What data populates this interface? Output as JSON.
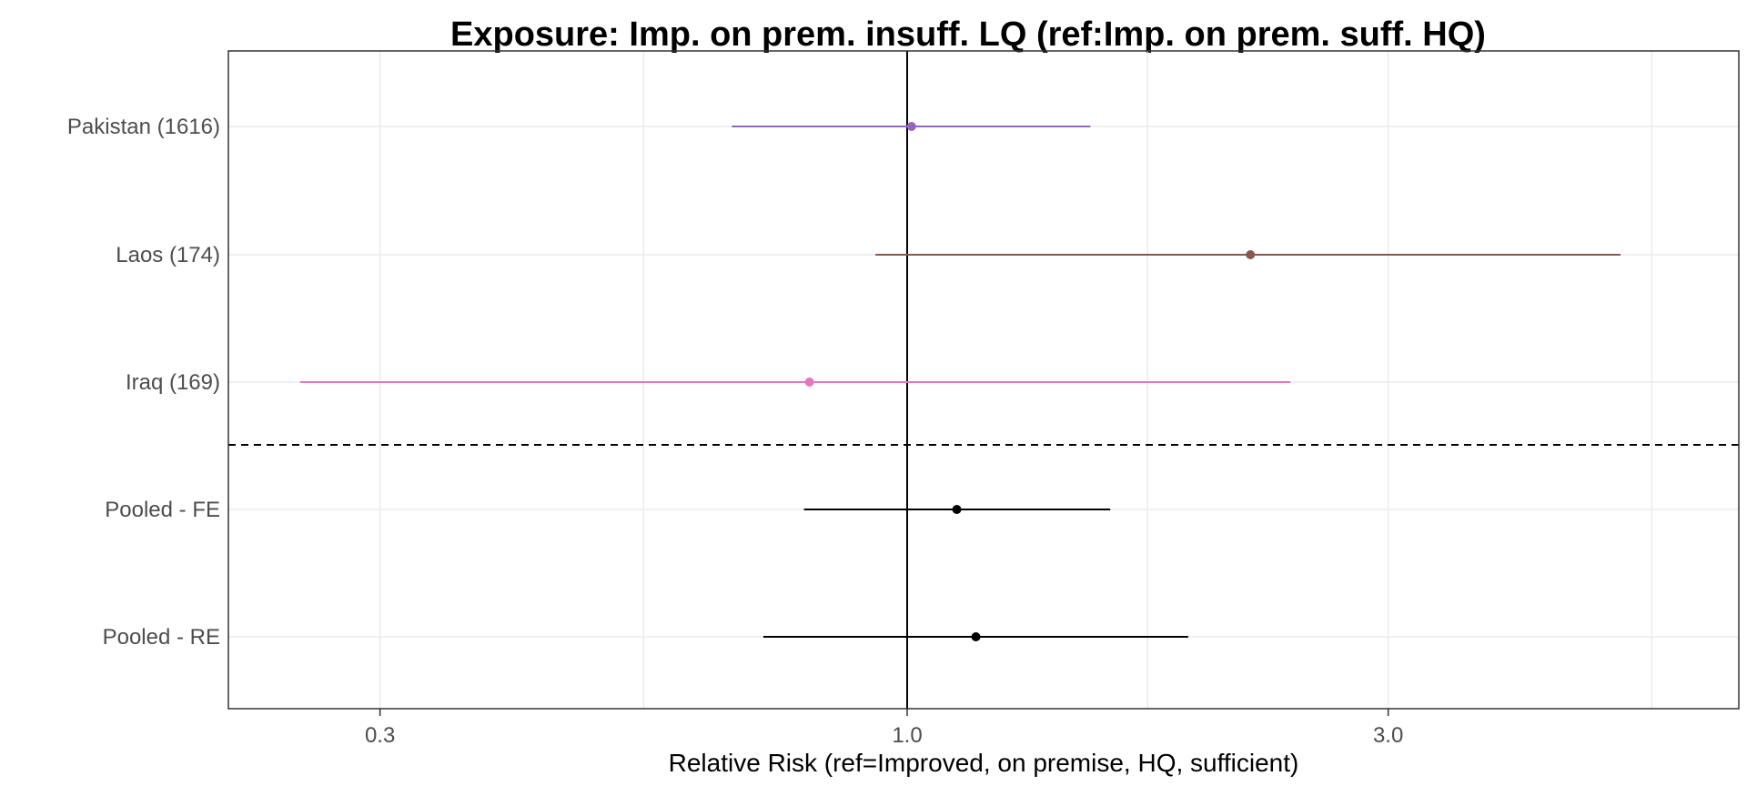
{
  "chart_data": {
    "type": "scatter",
    "subtype": "forest-plot",
    "title": "Exposure: Imp. on prem. insuff. LQ (ref:Imp. on prem. suff. HQ)",
    "xlabel": "Relative Risk (ref=Improved, on premise, HQ, sufficient)",
    "ylabel": "",
    "x_scale": "log",
    "xlim": [
      0.2,
      5.5
    ],
    "x_ticks": [
      {
        "value": 0.3,
        "label": "0.3"
      },
      {
        "value": 1.0,
        "label": "1.0"
      },
      {
        "value": 3.0,
        "label": "3.0"
      }
    ],
    "reference_line": 1.0,
    "separator": "dashed line between Iraq (169) and Pooled - FE",
    "grid": true,
    "rows": [
      {
        "label": "Pakistan (1616)",
        "estimate": 1.01,
        "lower": 0.67,
        "upper": 1.52,
        "color": "#9467bd"
      },
      {
        "label": "Laos (174)",
        "estimate": 2.19,
        "lower": 0.93,
        "upper": 5.1,
        "color": "#8c564b"
      },
      {
        "label": "Iraq (169)",
        "estimate": 0.8,
        "lower": 0.25,
        "upper": 2.4,
        "color": "#e377c2"
      },
      {
        "label": "Pooled - FE",
        "estimate": 1.12,
        "lower": 0.79,
        "upper": 1.59,
        "color": "#000000"
      },
      {
        "label": "Pooled - RE",
        "estimate": 1.17,
        "lower": 0.72,
        "upper": 1.9,
        "color": "#000000"
      }
    ]
  }
}
